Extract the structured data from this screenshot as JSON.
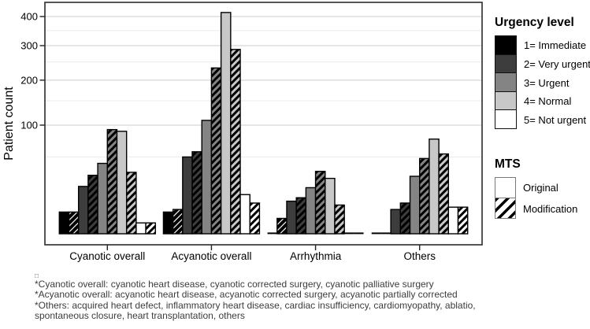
{
  "chart_data": {
    "type": "bar",
    "title": "",
    "ylabel": "Patient count",
    "xlabel": "",
    "y_scale": "sqrt",
    "ylim": [
      0,
      440
    ],
    "y_major_ticks": [
      400,
      300,
      200,
      100
    ],
    "y_minor_gridlines": [
      350,
      250,
      150,
      50
    ],
    "grid": "major and minor horizontal gridlines, light gray on white, full black panel border",
    "legend_position": "right",
    "categories": [
      "Cyanotic overall",
      "Acyanotic overall",
      "Arrhythmia",
      "Others"
    ],
    "series": [
      {
        "urgency": "1= Immediate",
        "mts": "Original",
        "fill": "#000000",
        "hatch": false,
        "values": [
          4,
          4,
          0,
          0
        ]
      },
      {
        "urgency": "1= Immediate",
        "mts": "Modification",
        "fill": "#000000",
        "hatch": true,
        "values": [
          4,
          5,
          2,
          0
        ]
      },
      {
        "urgency": "2= Very urgent",
        "mts": "Original",
        "fill": "#3d3d3d",
        "hatch": false,
        "values": [
          19,
          50,
          9,
          5
        ]
      },
      {
        "urgency": "2= Very urgent",
        "mts": "Modification",
        "fill": "#3d3d3d",
        "hatch": true,
        "values": [
          29,
          57,
          11,
          8
        ]
      },
      {
        "urgency": "3= Urgent",
        "mts": "Original",
        "fill": "#848484",
        "hatch": false,
        "values": [
          42,
          109,
          18,
          28
        ]
      },
      {
        "urgency": "3= Urgent",
        "mts": "Modification",
        "fill": "#848484",
        "hatch": true,
        "values": [
          92,
          233,
          33,
          48
        ]
      },
      {
        "urgency": "4= Normal",
        "mts": "Original",
        "fill": "#c8c8c8",
        "hatch": false,
        "values": [
          89,
          415,
          26,
          76
        ]
      },
      {
        "urgency": "4= Normal",
        "mts": "Modification",
        "fill": "#c8c8c8",
        "hatch": true,
        "values": [
          32,
          288,
          7,
          54
        ]
      },
      {
        "urgency": "5= Not urgent",
        "mts": "Original",
        "fill": "#ffffff",
        "hatch": false,
        "values": [
          1,
          13,
          0,
          6
        ]
      },
      {
        "urgency": "5= Not urgent",
        "mts": "Modification",
        "fill": "#ffffff",
        "hatch": true,
        "values": [
          1,
          8,
          0,
          6
        ]
      }
    ]
  },
  "legend_urgency": {
    "title": "Urgency level",
    "items": [
      {
        "label": "1= Immediate",
        "color": "#000000"
      },
      {
        "label": "2= Very urgent",
        "color": "#3d3d3d"
      },
      {
        "label": "3= Urgent",
        "color": "#848484"
      },
      {
        "label": "4= Normal",
        "color": "#c8c8c8"
      },
      {
        "label": "5= Not urgent",
        "color": "#ffffff"
      }
    ]
  },
  "legend_mts": {
    "title": "MTS",
    "items": [
      {
        "label": "Original",
        "pattern": "plain"
      },
      {
        "label": "Modification",
        "pattern": "hatch"
      }
    ]
  },
  "footnotes": {
    "marker": "□",
    "lines": [
      "*Cyanotic overall:  cyanotic heart disease, cyanotic corrected surgery, cyanotic palliative surgery",
      "*Acyanotic overall:  acyanotic heart disease, acyanotic corrected surgery, acyanotic partially corrected",
      "*Others:  acquired heart defect, inflammatory heart disease, cardiac insufficiency, cardiomyopathy, ablatio, spontaneous closure, heart transplantation, others"
    ]
  },
  "colors": {
    "bar_border": "#000000",
    "major_gridline": "#d7d7d7",
    "minor_gridline": "#ebebeb",
    "panel_border": "#2b2b2b",
    "footnote_text": "#3c3c3c"
  }
}
